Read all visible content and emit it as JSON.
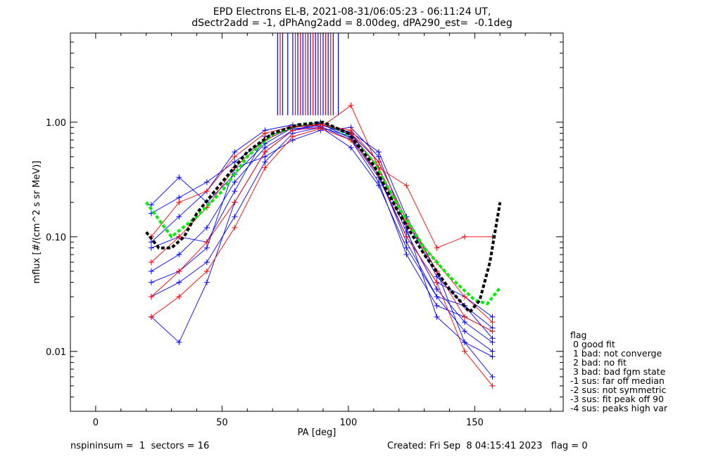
{
  "header": {
    "title_line1": "EPD Electrons EL-B, 2021-08-31/06:05:23 - 06:11:24 UT,",
    "title_line2": "dSectr2add = -1, dPhAng2add = 8.00deg, dPA290_est=  -0.1deg"
  },
  "legend": {
    "title": "flag",
    "items": [
      " 0 good fit",
      " 1 bad: not converge",
      " 2 bad: no fit",
      " 3 bad: bad fgm state",
      "-1 sus: far off median",
      "-2 sus: not symmetric",
      "-3 sus: fit peak off 90",
      "-4 sus: peaks high var"
    ]
  },
  "footer": {
    "left": "nspininsum =  1  sectors = 16",
    "right": "Created: Fri Sep  8 04:15:41 2023   flag = 0"
  },
  "colors": {
    "series_blue": "#0000ff",
    "series_red": "#ff0000",
    "fit_green": "#00ee00",
    "fit_black": "#000000"
  },
  "chart_data": {
    "type": "line",
    "xlabel": "PA [deg]",
    "ylabel": "mflux [#/(cm^2 s sr MeV)]",
    "xlim": [
      -10,
      185
    ],
    "ylim": [
      0.003,
      6
    ],
    "yscale": "log",
    "xticks": [
      0,
      50,
      100,
      150
    ],
    "xtick_labels": [
      "0",
      "50",
      "100",
      "150"
    ],
    "yticks": [
      0.01,
      0.1,
      1.0
    ],
    "ytick_labels": [
      "0.01",
      "0.10",
      "1.00"
    ],
    "grid": false,
    "legend_position": "right-outside",
    "x": [
      22,
      33,
      44,
      55,
      67,
      78,
      89,
      101,
      112,
      123,
      135,
      146,
      157
    ],
    "series": [
      {
        "color": "blue",
        "values": [
          0.16,
          0.22,
          0.3,
          0.45,
          0.7,
          0.9,
          1.0,
          0.8,
          0.45,
          0.14,
          0.045,
          0.025,
          0.013
        ]
      },
      {
        "color": "blue",
        "values": [
          0.05,
          0.07,
          0.12,
          0.3,
          0.6,
          0.85,
          0.95,
          0.78,
          0.4,
          0.11,
          0.035,
          0.018,
          0.012
        ]
      },
      {
        "color": "blue",
        "values": [
          0.03,
          0.04,
          0.06,
          0.15,
          0.45,
          0.8,
          0.9,
          0.75,
          0.35,
          0.09,
          0.03,
          0.015,
          0.01
        ]
      },
      {
        "color": "blue",
        "values": [
          0.09,
          0.15,
          0.25,
          0.55,
          0.85,
          0.95,
          0.92,
          0.7,
          0.3,
          0.07,
          0.025,
          0.02,
          0.015
        ]
      },
      {
        "color": "blue",
        "values": [
          0.02,
          0.012,
          0.04,
          0.2,
          0.55,
          0.85,
          0.98,
          0.72,
          0.33,
          0.1,
          0.04,
          0.03,
          0.02
        ]
      },
      {
        "color": "blue",
        "values": [
          0.19,
          0.33,
          0.2,
          0.35,
          0.65,
          0.9,
          0.95,
          0.82,
          0.55,
          0.15,
          0.05,
          0.012,
          0.006
        ]
      },
      {
        "color": "blue",
        "values": [
          0.08,
          0.1,
          0.09,
          0.25,
          0.75,
          0.88,
          0.9,
          0.6,
          0.28,
          0.08,
          0.03,
          0.025,
          0.016
        ]
      },
      {
        "color": "blue",
        "values": [
          0.04,
          0.05,
          0.08,
          0.4,
          0.5,
          0.7,
          0.85,
          0.9,
          0.5,
          0.12,
          0.02,
          0.012,
          0.009
        ]
      },
      {
        "color": "red",
        "values": [
          0.06,
          0.1,
          0.18,
          0.4,
          0.7,
          0.9,
          0.95,
          0.85,
          0.45,
          0.14,
          0.05,
          0.02,
          0.015
        ]
      },
      {
        "color": "red",
        "values": [
          0.03,
          0.05,
          0.09,
          0.2,
          0.55,
          0.85,
          0.9,
          1.4,
          0.4,
          0.28,
          0.08,
          0.1,
          0.1
        ]
      },
      {
        "color": "red",
        "values": [
          0.02,
          0.03,
          0.05,
          0.12,
          0.4,
          0.75,
          0.88,
          0.7,
          0.35,
          0.1,
          0.04,
          0.01,
          0.005
        ]
      },
      {
        "color": "red",
        "values": [
          0.1,
          0.2,
          0.25,
          0.5,
          0.8,
          0.92,
          0.96,
          0.8,
          0.4,
          0.13,
          0.06,
          0.03,
          0.018
        ]
      }
    ],
    "fits": [
      {
        "color": "green",
        "style": "dashed",
        "x": [
          20,
          30,
          40,
          50,
          60,
          70,
          80,
          90,
          100,
          110,
          120,
          130,
          140,
          150,
          155,
          160
        ],
        "values": [
          0.2,
          0.1,
          0.15,
          0.25,
          0.5,
          0.78,
          0.94,
          1.0,
          0.78,
          0.45,
          0.18,
          0.08,
          0.045,
          0.028,
          0.026,
          0.036
        ]
      },
      {
        "color": "black",
        "style": "dashed",
        "x": [
          20,
          25,
          30,
          35,
          40,
          50,
          60,
          70,
          80,
          90,
          100,
          110,
          120,
          130,
          140,
          148,
          152,
          156,
          160
        ],
        "values": [
          0.11,
          0.08,
          0.08,
          0.1,
          0.16,
          0.3,
          0.55,
          0.8,
          0.95,
          1.0,
          0.8,
          0.42,
          0.16,
          0.07,
          0.035,
          0.022,
          0.028,
          0.06,
          0.2
        ]
      }
    ],
    "vertical_lines": {
      "ymin": 1.15,
      "blue_x": [
        72,
        74,
        76,
        78,
        80,
        82,
        84,
        85,
        87,
        88,
        90,
        92,
        94,
        96
      ],
      "red_x": [
        73,
        79,
        81,
        83,
        86,
        89,
        91,
        93
      ]
    }
  }
}
